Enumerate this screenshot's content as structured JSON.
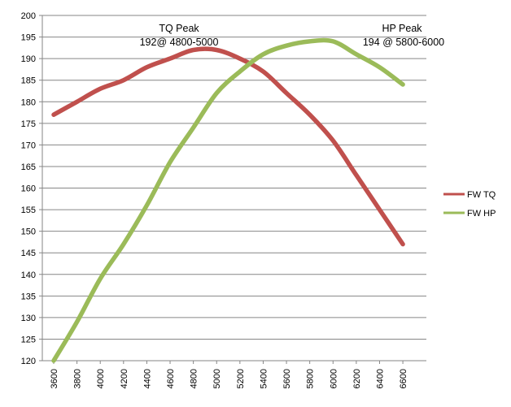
{
  "chart_data": {
    "type": "line",
    "title": "",
    "xlabel": "",
    "ylabel": "",
    "x": [
      3600,
      3800,
      4000,
      4200,
      4400,
      4600,
      4800,
      5000,
      5200,
      5400,
      5600,
      5800,
      6000,
      6200,
      6400,
      6600
    ],
    "x_tick_labels": [
      "3600",
      "3800",
      "4000",
      "4200",
      "4400",
      "4600",
      "4800",
      "5000",
      "5200",
      "5400",
      "5600",
      "5800",
      "6000",
      "6200",
      "6400",
      "6600"
    ],
    "y_tick_labels": [
      "120",
      "125",
      "130",
      "135",
      "140",
      "145",
      "150",
      "155",
      "160",
      "165",
      "170",
      "175",
      "180",
      "185",
      "190",
      "195",
      "200"
    ],
    "ylim": [
      120,
      200
    ],
    "grid": "horizontal",
    "legend_position": "right",
    "series": [
      {
        "name": "FW TQ",
        "color": "#c0504d",
        "values": [
          177,
          180,
          183,
          185,
          188,
          190,
          192,
          192,
          190,
          187,
          182,
          177,
          171,
          163,
          155,
          147
        ]
      },
      {
        "name": "FW HP",
        "color": "#9bbb59",
        "values": [
          120,
          129,
          139,
          147,
          156,
          166,
          174,
          182,
          187,
          191,
          193,
          194,
          194,
          191,
          188,
          184
        ]
      }
    ],
    "annotations": [
      {
        "line1": "TQ Peak",
        "line2": "192@ 4800-5000"
      },
      {
        "line1": "HP Peak",
        "line2": "194 @ 5800-6000"
      }
    ]
  }
}
